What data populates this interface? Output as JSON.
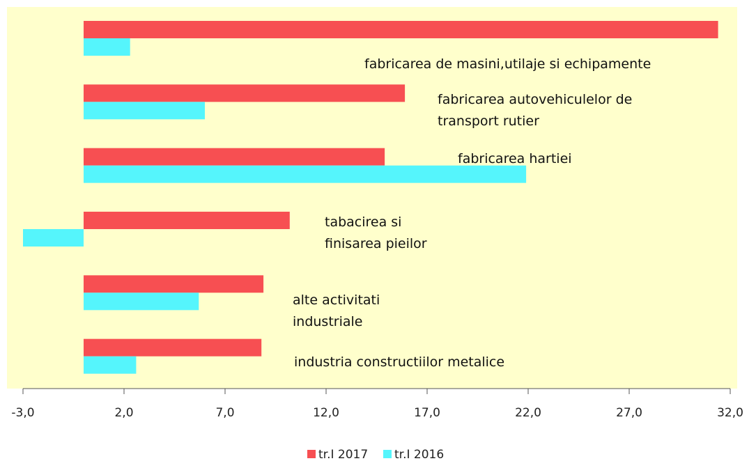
{
  "chart_data": {
    "type": "bar",
    "orientation": "horizontal",
    "categories": [
      "fabricarea de masini,utilaje si echipamente",
      "fabricarea autovehiculelor de transport rutier",
      "fabricarea hartiei",
      "tabacirea si finisarea pieilor",
      "alte activitati industriale",
      "industria constructiilor metalice"
    ],
    "series": [
      {
        "name": "tr.I 2017",
        "color": "#f74f52",
        "values": [
          31.4,
          15.9,
          14.9,
          10.2,
          8.9,
          8.8
        ]
      },
      {
        "name": "tr.I 2016",
        "color": "#55f5fc",
        "values": [
          2.3,
          6.0,
          21.9,
          -3.0,
          5.7,
          2.6
        ]
      }
    ],
    "xlim": [
      -3,
      32
    ],
    "xticks": [
      {
        "value": -3,
        "label": "-3,0"
      },
      {
        "value": 2,
        "label": "2,0"
      },
      {
        "value": 7,
        "label": "7,0"
      },
      {
        "value": 12,
        "label": "12,0"
      },
      {
        "value": 17,
        "label": "17,0"
      },
      {
        "value": 22,
        "label": "22,0"
      },
      {
        "value": 27,
        "label": "27,0"
      },
      {
        "value": 32,
        "label": "32,0"
      }
    ],
    "legend": "bottom",
    "background": "#ffffcc"
  }
}
